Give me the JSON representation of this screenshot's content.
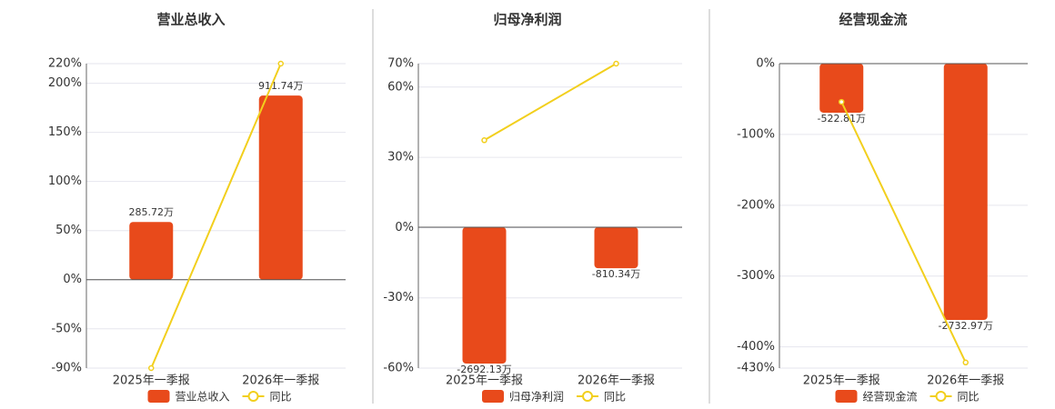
{
  "chart_data": [
    {
      "type": "combo",
      "title": "营业总收入",
      "categories": [
        "2025年一季报",
        "2026年一季报"
      ],
      "series": [
        {
          "name": "营业总收入",
          "type": "bar",
          "axis": "y2",
          "color": "#e84a1b",
          "values": [
            285.72,
            911.74
          ],
          "value_labels": [
            "285.72万",
            "911.74万"
          ]
        },
        {
          "name": "同比",
          "type": "line",
          "color": "#f2cf1d",
          "values": [
            -90,
            220
          ]
        }
      ],
      "ylim": [
        -90,
        220
      ],
      "yticks": [
        {
          "value": -90,
          "label": "-90%"
        },
        {
          "value": -50,
          "label": "-50%"
        },
        {
          "value": 0,
          "label": "0%"
        },
        {
          "value": 50,
          "label": "50%"
        },
        {
          "value": 100,
          "label": "100%"
        },
        {
          "value": 150,
          "label": "150%"
        },
        {
          "value": 200,
          "label": "200%"
        },
        {
          "value": 220,
          "label": "220%"
        }
      ],
      "y2lim": [
        -438,
        1070
      ],
      "grid": true
    },
    {
      "type": "combo",
      "title": "归母净利润",
      "categories": [
        "2025年一季报",
        "2026年一季报"
      ],
      "series": [
        {
          "name": "归母净利润",
          "type": "bar",
          "axis": "y2",
          "color": "#e84a1b",
          "values": [
            -2692.13,
            -810.34
          ],
          "value_labels": [
            "-2692.13万",
            "-810.34万"
          ]
        },
        {
          "name": "同比",
          "type": "line",
          "color": "#f2cf1d",
          "values": [
            37.3,
            70
          ]
        }
      ],
      "ylim": [
        -60,
        70
      ],
      "yticks": [
        {
          "value": -60,
          "label": "-60%"
        },
        {
          "value": -30,
          "label": "-30%"
        },
        {
          "value": 0,
          "label": "0%"
        },
        {
          "value": 30,
          "label": "30%"
        },
        {
          "value": 60,
          "label": "60%"
        },
        {
          "value": 70,
          "label": "70%"
        }
      ],
      "y2lim": [
        -2782,
        3230
      ],
      "grid": true
    },
    {
      "type": "combo",
      "title": "经营现金流",
      "categories": [
        "2025年一季报",
        "2026年一季报"
      ],
      "series": [
        {
          "name": "经营现金流",
          "type": "bar",
          "axis": "y2",
          "color": "#e84a1b",
          "values": [
            -522.81,
            -2732.97
          ],
          "value_labels": [
            "-522.81万",
            "-2732.97万"
          ]
        },
        {
          "name": "同比",
          "type": "line",
          "color": "#f2cf1d",
          "values": [
            -54,
            -422
          ]
        }
      ],
      "ylim": [
        -430,
        0
      ],
      "yticks": [
        {
          "value": -430,
          "label": "-430%"
        },
        {
          "value": -400,
          "label": "-400%"
        },
        {
          "value": -300,
          "label": "-300%"
        },
        {
          "value": -200,
          "label": "-200%"
        },
        {
          "value": -100,
          "label": "-100%"
        },
        {
          "value": 0,
          "label": "0%"
        }
      ],
      "y2lim": [
        -3246,
        0
      ],
      "grid": true
    }
  ]
}
